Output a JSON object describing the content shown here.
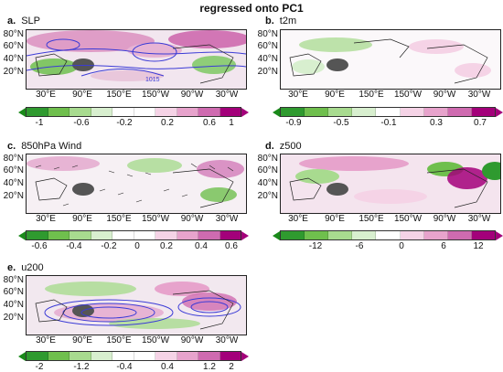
{
  "figure_title": "regressed onto PC1",
  "lat_labels": [
    "80°N",
    "60°N",
    "40°N",
    "20°N"
  ],
  "lon_labels": [
    "30°E",
    "90°E",
    "150°E",
    "150°W",
    "90°W",
    "30°W"
  ],
  "panels": [
    {
      "letter": "a.",
      "name": "SLP",
      "contour_label": "1015",
      "colorbar_ticks": [
        "-1",
        "-0.6",
        "-0.2",
        "0.2",
        "0.6",
        "1"
      ]
    },
    {
      "letter": "b.",
      "name": "t2m",
      "colorbar_ticks": [
        "-0.9",
        "-0.5",
        "-0.1",
        "0.3",
        "0.7"
      ]
    },
    {
      "letter": "c.",
      "name": "850hPa Wind",
      "colorbar_ticks": [
        "-0.6",
        "-0.4",
        "-0.2",
        "0",
        "0.2",
        "0.4",
        "0.6"
      ]
    },
    {
      "letter": "d.",
      "name": "z500",
      "colorbar_ticks": [
        "-12",
        "-6",
        "0",
        "6",
        "12"
      ]
    },
    {
      "letter": "e.",
      "name": "u200",
      "colorbar_ticks": [
        "-2",
        "-1.2",
        "-0.4",
        "0.4",
        "1.2",
        "2"
      ]
    }
  ],
  "colors": {
    "negative_dark": "#1a8a1a",
    "negative_light": "#d8efcf",
    "neutral": "#ffffff",
    "positive_light": "#f5d3e6",
    "positive_dark": "#a3007a",
    "contour": "#3b3bd6",
    "tibetan_plateau": "#555555"
  }
}
